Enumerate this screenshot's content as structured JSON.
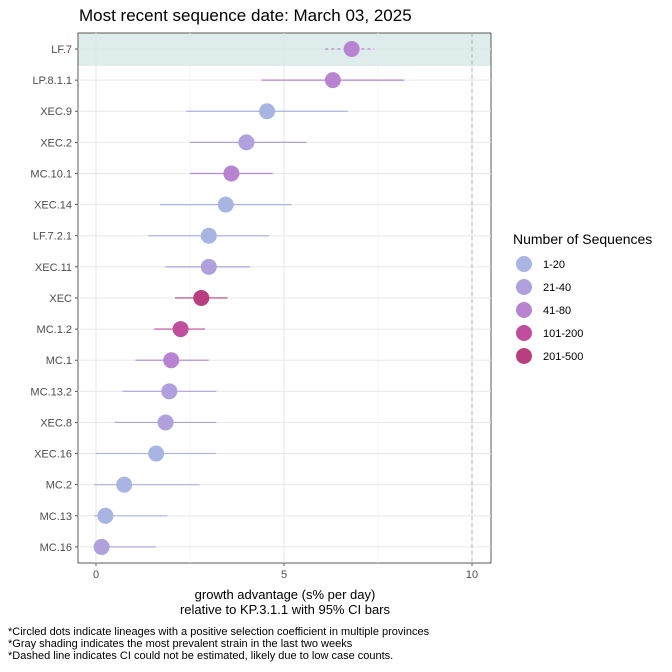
{
  "chart_data": {
    "type": "scatter",
    "title": "Most recent sequence date: March 03, 2025",
    "xlabel_line1": "growth advantage (s% per day)",
    "xlabel_line2": "relative to  KP.3.1.1  with 95% CI bars",
    "xlim": [
      -0.45,
      10.5
    ],
    "xticks": [
      0,
      5,
      10
    ],
    "dashed_reference_x": 10,
    "highlighted_lineage": "LF.7",
    "grid": true,
    "legend": {
      "title": "Number of Sequences",
      "position": "right",
      "items": [
        {
          "label": "1-20",
          "color": "#a8b4e2"
        },
        {
          "label": "21-40",
          "color": "#b0a0dc"
        },
        {
          "label": "41-80",
          "color": "#b884d2"
        },
        {
          "label": "101-200",
          "color": "#c04e9c"
        },
        {
          "label": "201-500",
          "color": "#b83e80"
        }
      ]
    },
    "points": [
      {
        "lineage": "LF.7",
        "value": 6.8,
        "ci_low": 6.1,
        "ci_high": 7.4,
        "bin": "41-80",
        "dashed_ci": true
      },
      {
        "lineage": "LP.8.1.1",
        "value": 6.3,
        "ci_low": 4.4,
        "ci_high": 8.2,
        "bin": "41-80"
      },
      {
        "lineage": "XEC.9",
        "value": 4.55,
        "ci_low": 2.4,
        "ci_high": 6.7,
        "bin": "1-20"
      },
      {
        "lineage": "XEC.2",
        "value": 4.0,
        "ci_low": 2.5,
        "ci_high": 5.6,
        "bin": "21-40"
      },
      {
        "lineage": "MC.10.1",
        "value": 3.6,
        "ci_low": 2.5,
        "ci_high": 4.7,
        "bin": "41-80"
      },
      {
        "lineage": "XEC.14",
        "value": 3.45,
        "ci_low": 1.7,
        "ci_high": 5.2,
        "bin": "1-20"
      },
      {
        "lineage": "LF.7.2.1",
        "value": 3.0,
        "ci_low": 1.4,
        "ci_high": 4.6,
        "bin": "1-20"
      },
      {
        "lineage": "XEC.11",
        "value": 3.0,
        "ci_low": 1.85,
        "ci_high": 4.1,
        "bin": "21-40"
      },
      {
        "lineage": "XEC",
        "value": 2.8,
        "ci_low": 2.1,
        "ci_high": 3.5,
        "bin": "201-500"
      },
      {
        "lineage": "MC.1.2",
        "value": 2.25,
        "ci_low": 1.55,
        "ci_high": 2.9,
        "bin": "101-200"
      },
      {
        "lineage": "MC.1",
        "value": 2.0,
        "ci_low": 1.05,
        "ci_high": 3.0,
        "bin": "41-80"
      },
      {
        "lineage": "MC.13.2",
        "value": 1.95,
        "ci_low": 0.7,
        "ci_high": 3.2,
        "bin": "21-40"
      },
      {
        "lineage": "XEC.8",
        "value": 1.85,
        "ci_low": 0.5,
        "ci_high": 3.2,
        "bin": "21-40"
      },
      {
        "lineage": "XEC.16",
        "value": 1.6,
        "ci_low": 0.0,
        "ci_high": 3.2,
        "bin": "1-20"
      },
      {
        "lineage": "MC.2",
        "value": 0.75,
        "ci_low": -0.05,
        "ci_high": 2.75,
        "bin": "1-20"
      },
      {
        "lineage": "MC.13",
        "value": 0.25,
        "ci_low": -0.05,
        "ci_high": 1.9,
        "bin": "1-20"
      },
      {
        "lineage": "MC.16",
        "value": 0.15,
        "ci_low": -0.05,
        "ci_high": 1.6,
        "bin": "21-40"
      }
    ]
  },
  "footnotes": [
    "*Circled dots indicate lineages with a positive selection coefficient in multiple provinces",
    "*Gray shading indicates the most prevalent strain in the last two weeks",
    "*Dashed line indicates CI could not be estimated, likely due to low case counts."
  ]
}
